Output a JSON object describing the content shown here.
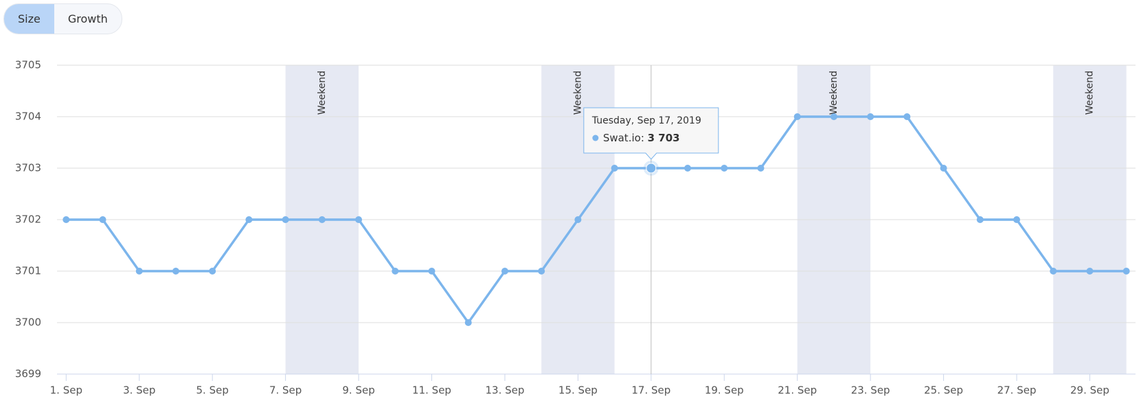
{
  "buttons": [
    "Size",
    "Growth"
  ],
  "chart_data": {
    "type": "line",
    "x": [
      1,
      2,
      3,
      4,
      5,
      6,
      7,
      8,
      9,
      10,
      11,
      12,
      13,
      14,
      15,
      16,
      17,
      18,
      19,
      20,
      21,
      22,
      23,
      24,
      25,
      26,
      27,
      28,
      29,
      30
    ],
    "series": [
      {
        "name": "Swat.io",
        "color": "#7cb5ec",
        "values": [
          3702,
          3702,
          3701,
          3701,
          3701,
          3702,
          3702,
          3702,
          3702,
          3701,
          3701,
          3700,
          3701,
          3701,
          3702,
          3703,
          3703,
          3703,
          3703,
          3703,
          3704,
          3704,
          3704,
          3704,
          3703,
          3702,
          3702,
          3701,
          3701,
          3701
        ]
      }
    ],
    "xlim": [
      0.75,
      30.25
    ],
    "xticks": [
      {
        "value": 1,
        "label": "1. Sep"
      },
      {
        "value": 3,
        "label": "3. Sep"
      },
      {
        "value": 5,
        "label": "5. Sep"
      },
      {
        "value": 7,
        "label": "7. Sep"
      },
      {
        "value": 9,
        "label": "9. Sep"
      },
      {
        "value": 11,
        "label": "11. Sep"
      },
      {
        "value": 13,
        "label": "13. Sep"
      },
      {
        "value": 15,
        "label": "15. Sep"
      },
      {
        "value": 17,
        "label": "17. Sep"
      },
      {
        "value": 19,
        "label": "19. Sep"
      },
      {
        "value": 21,
        "label": "21. Sep"
      },
      {
        "value": 23,
        "label": "23. Sep"
      },
      {
        "value": 25,
        "label": "25. Sep"
      },
      {
        "value": 27,
        "label": "27. Sep"
      },
      {
        "value": 29,
        "label": "29. Sep"
      }
    ],
    "ylim": [
      3699,
      3705
    ],
    "yticks": [
      3699,
      3700,
      3701,
      3702,
      3703,
      3704,
      3705
    ],
    "grid": true,
    "plot_bands": [
      {
        "from": 7,
        "to": 9,
        "label": "Weekend"
      },
      {
        "from": 14,
        "to": 16,
        "label": "Weekend"
      },
      {
        "from": 21,
        "to": 23,
        "label": "Weekend"
      },
      {
        "from": 28,
        "to": 30,
        "label": "Weekend"
      }
    ],
    "tooltip": {
      "index": 16,
      "title": "Tuesday, Sep 17, 2019",
      "value_label": "3 703"
    }
  }
}
